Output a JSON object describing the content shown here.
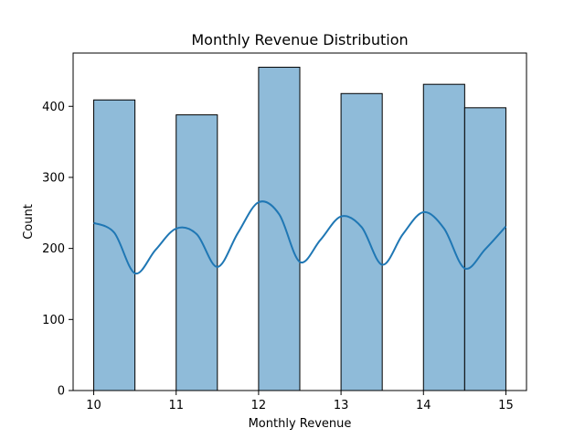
{
  "chart_data": {
    "type": "bar",
    "title": "Monthly Revenue Distribution",
    "xlabel": "Monthly Revenue",
    "ylabel": "Count",
    "xlim": [
      9.75,
      15.25
    ],
    "ylim": [
      0,
      475
    ],
    "x_ticks": [
      10,
      11,
      12,
      13,
      14,
      15
    ],
    "y_ticks": [
      0,
      100,
      200,
      300,
      400
    ],
    "bins": [
      {
        "start": 10.0,
        "end": 10.5,
        "count": 409
      },
      {
        "start": 11.0,
        "end": 11.5,
        "count": 388
      },
      {
        "start": 12.0,
        "end": 12.5,
        "count": 455
      },
      {
        "start": 13.0,
        "end": 13.5,
        "count": 418
      },
      {
        "start": 14.0,
        "end": 14.5,
        "count": 431
      },
      {
        "start": 14.5,
        "end": 15.0,
        "count": 398
      }
    ],
    "kde_curve": {
      "x": [
        10.0,
        10.25,
        10.5,
        10.75,
        11.0,
        11.25,
        11.5,
        11.75,
        12.0,
        12.25,
        12.5,
        12.75,
        13.0,
        13.25,
        13.5,
        13.75,
        14.0,
        14.25,
        14.5,
        14.75,
        15.0
      ],
      "y": [
        236,
        222,
        165,
        198,
        228,
        220,
        174,
        222,
        265,
        248,
        181,
        212,
        245,
        230,
        177,
        220,
        251,
        228,
        172,
        199,
        231
      ]
    },
    "colors": {
      "bar_fill": "#8fbbd9",
      "bar_edge": "#000000",
      "kde_line": "#1f77b4"
    },
    "grid": false,
    "legend": "none"
  }
}
